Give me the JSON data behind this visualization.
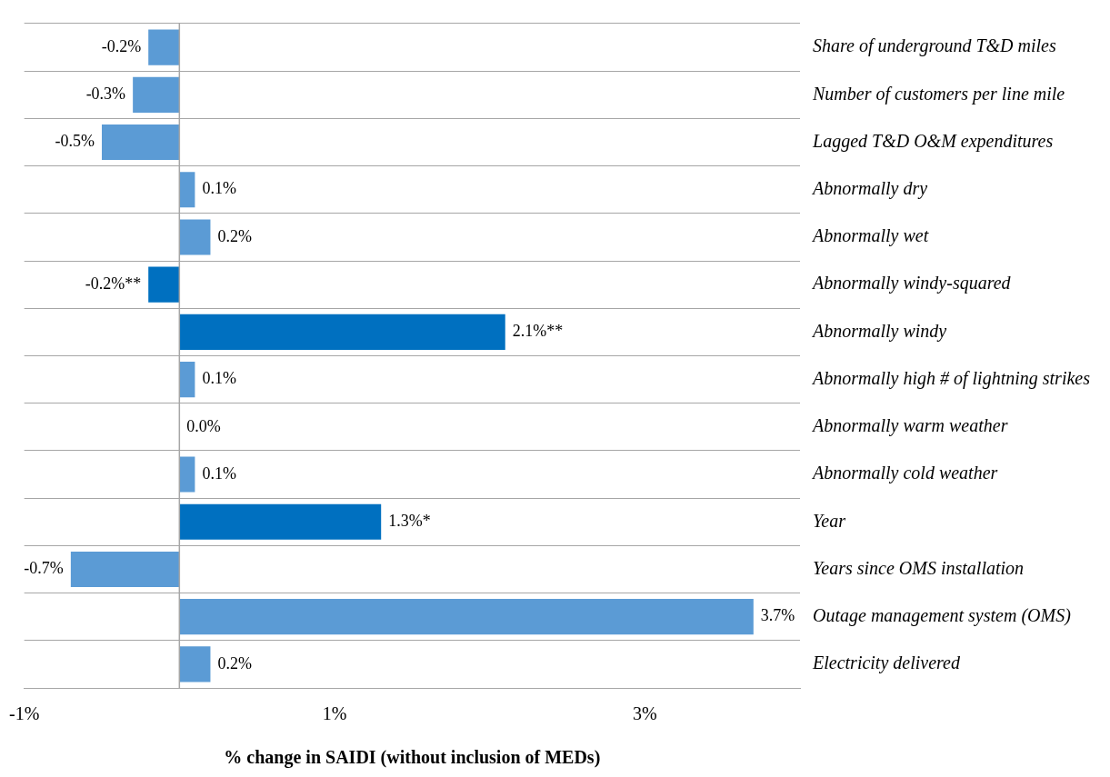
{
  "chart_data": {
    "type": "bar",
    "orientation": "horizontal",
    "xlabel": "% change in SAIDI (without inclusion of MEDs)",
    "categories": [
      "Share of underground T&D miles",
      "Number of customers per line mile",
      "Lagged T&D O&M expenditures",
      "Abnormally dry",
      "Abnormally wet",
      "Abnormally windy-squared",
      "Abnormally windy",
      "Abnormally high # of lightning strikes",
      "Abnormally warm weather",
      "Abnormally cold weather",
      "Year",
      "Years since OMS installation",
      "Outage management system (OMS)",
      "Electricity delivered"
    ],
    "values": [
      -0.2,
      -0.3,
      -0.5,
      0.1,
      0.2,
      -0.2,
      2.1,
      0.1,
      0.0,
      0.1,
      1.3,
      -0.7,
      3.7,
      0.2
    ],
    "value_labels": [
      "-0.2%",
      "-0.3%",
      "-0.5%",
      "0.1%",
      "0.2%",
      "-0.2%**",
      "2.1%**",
      "0.1%",
      "0.0%",
      "0.1%",
      "1.3%*",
      "-0.7%",
      "3.7%",
      "0.2%"
    ],
    "colors": [
      "#5b9bd5",
      "#5b9bd5",
      "#5b9bd5",
      "#5b9bd5",
      "#5b9bd5",
      "#0070c0",
      "#0070c0",
      "#5b9bd5",
      "#5b9bd5",
      "#5b9bd5",
      "#0070c0",
      "#5b9bd5",
      "#5b9bd5",
      "#5b9bd5"
    ],
    "xlim": [
      -1,
      4
    ],
    "xticks": [
      {
        "value": -1,
        "label": "-1%"
      },
      {
        "value": 1,
        "label": "1%"
      },
      {
        "value": 3,
        "label": "3%"
      }
    ],
    "ref_lines": [
      {
        "axis": "x",
        "value": 0,
        "color": "#a6a6a6"
      }
    ],
    "grid": "y",
    "legend": false
  }
}
